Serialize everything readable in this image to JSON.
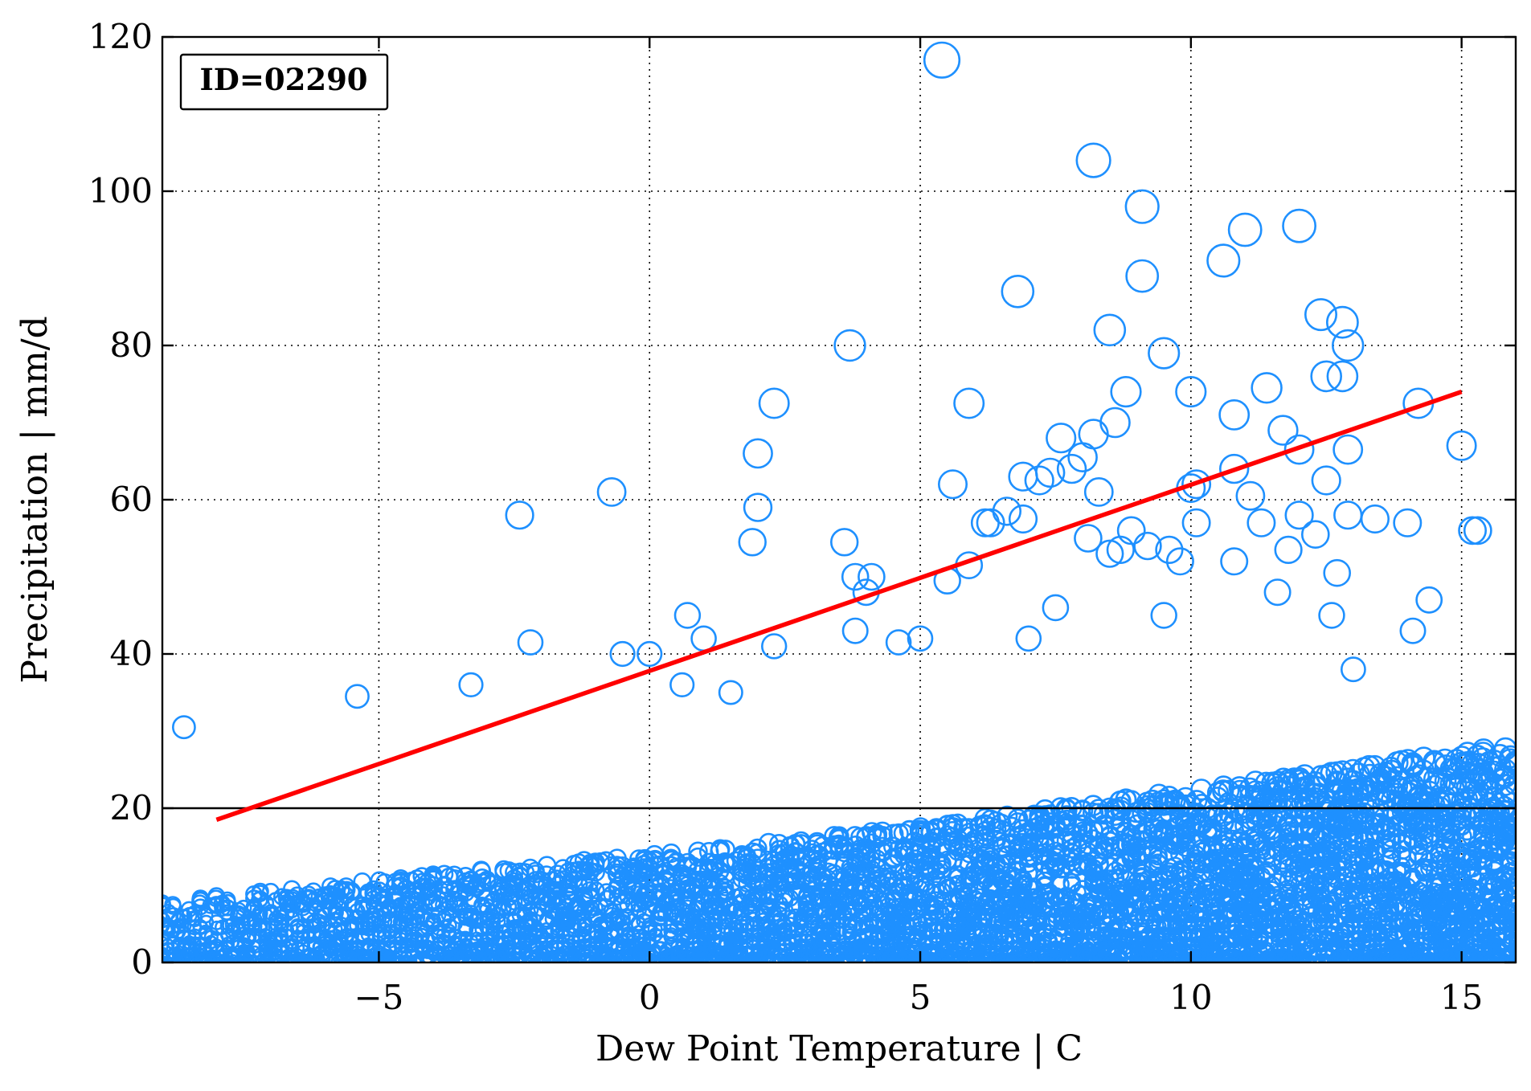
{
  "chart_data": {
    "type": "scatter",
    "title": "",
    "xlabel": "Dew Point Temperature | C",
    "ylabel": "Precipitation | mm/d",
    "xlim": [
      -9,
      16
    ],
    "ylim": [
      0,
      120
    ],
    "x_ticks": [
      -5,
      0,
      5,
      10,
      15
    ],
    "x_tick_labels": [
      "−5",
      "0",
      "5",
      "10",
      "15"
    ],
    "y_ticks": [
      0,
      20,
      40,
      60,
      80,
      100,
      120
    ],
    "y_tick_labels": [
      "0",
      "20",
      "40",
      "60",
      "80",
      "100",
      "120"
    ],
    "grid": true,
    "annotation": "ID=02290",
    "annotation_position": "top-left",
    "colors": {
      "points": "#1e90ff",
      "fit": "#ff0000",
      "threshold": "#000000"
    },
    "threshold_line": {
      "y": 20
    },
    "fit_line": {
      "x": [
        -8.0,
        15.0
      ],
      "y": [
        18.5,
        74.0
      ]
    },
    "series": [
      {
        "marker": "open-circle",
        "x": [
          5.4,
          8.2,
          9.1,
          11.0,
          12.0,
          9.1,
          10.6,
          6.8,
          12.4,
          12.8,
          8.5,
          3.7,
          12.9,
          9.5,
          12.5,
          12.8,
          11.4,
          10.0,
          8.8,
          2.3,
          14.2,
          5.9,
          10.8,
          8.6,
          7.6,
          11.7,
          15.0,
          8.2,
          2.0,
          12.0,
          12.9,
          8.0,
          6.9,
          7.8,
          10.8,
          7.4,
          7.2,
          12.5,
          10.0,
          5.6,
          8.3,
          10.1,
          11.1,
          -0.7,
          2.0,
          12.9,
          12.0,
          -2.4,
          6.6,
          6.9,
          6.3,
          13.4,
          11.3,
          14.0,
          10.1,
          15.2,
          15.3,
          8.9,
          12.3,
          3.6,
          1.9,
          11.8,
          9.2,
          9.6,
          9.8,
          8.7,
          8.5,
          8.1,
          3.8,
          4.1,
          5.9,
          12.7,
          5.5,
          10.8,
          14.4,
          12.6,
          0.7,
          1.0,
          5.0,
          4.6,
          -2.2,
          2.3,
          0.0,
          -0.5,
          1.5,
          0.6,
          7.0,
          9.5,
          14.1,
          -3.3,
          -5.4,
          -8.6,
          6.2,
          7.5,
          4.0,
          3.8,
          11.6,
          13.0
        ],
        "y": [
          117,
          104,
          98,
          95,
          95.5,
          89,
          91,
          87,
          84,
          83,
          82,
          80,
          80,
          79,
          76,
          76,
          74.5,
          74,
          74,
          72.5,
          72.5,
          72.5,
          71,
          70,
          68,
          69,
          67,
          68.5,
          66,
          66.5,
          66.5,
          65.5,
          63,
          64,
          64,
          63.5,
          62.5,
          62.5,
          61.5,
          62,
          61,
          62,
          60.5,
          61,
          59,
          58,
          58,
          58,
          58.5,
          57.5,
          57,
          57.5,
          57,
          57,
          57,
          56,
          56,
          56,
          55.5,
          54.5,
          54.5,
          53.5,
          54,
          53.5,
          52,
          53.5,
          53,
          55,
          50,
          50,
          51.5,
          50.5,
          49.5,
          52,
          47,
          45,
          45,
          42,
          42,
          41.5,
          41.5,
          41,
          40,
          40,
          35,
          36,
          42,
          45,
          43,
          36,
          34.5,
          30.5,
          57,
          46,
          48,
          43,
          48,
          38
        ]
      }
    ]
  }
}
